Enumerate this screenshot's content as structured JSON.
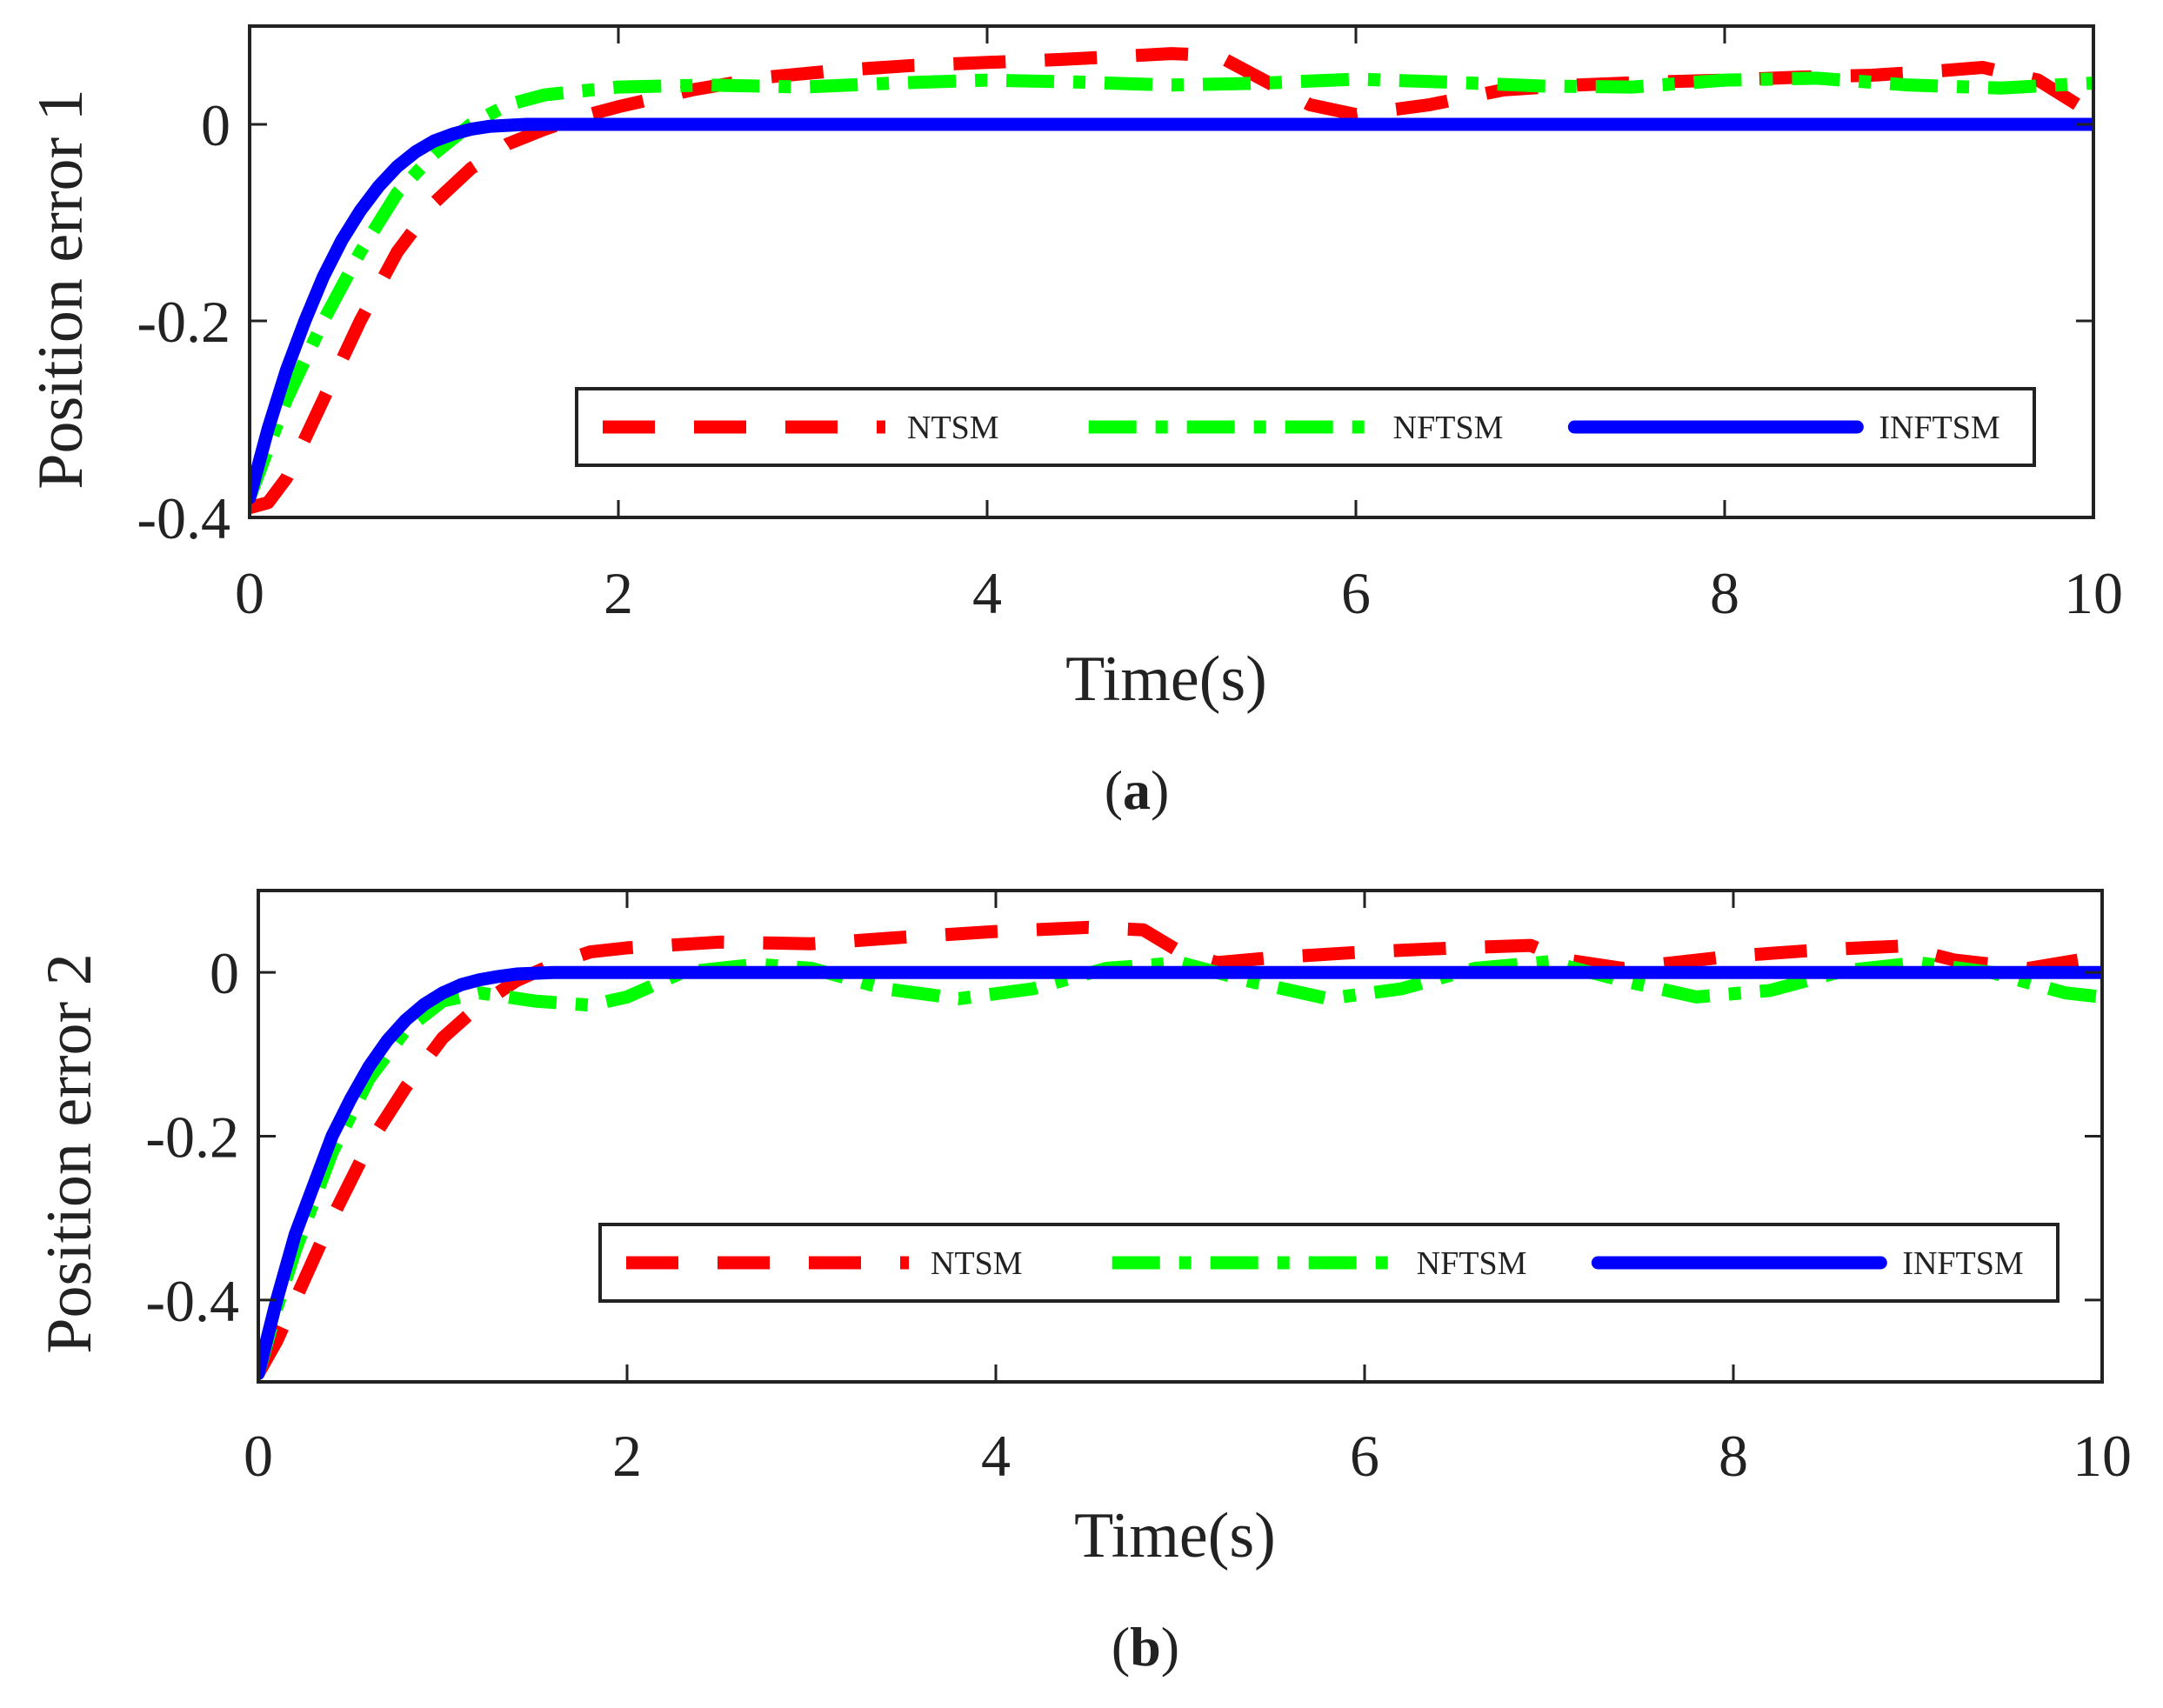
{
  "chart_data": [
    {
      "type": "line",
      "caption_letter": "a",
      "xlabel": "Time(s)",
      "ylabel": "Position error 1",
      "xlim": [
        0,
        10
      ],
      "ylim": [
        -0.4,
        0.1
      ],
      "xticks": [
        0,
        2,
        4,
        6,
        8,
        10
      ],
      "xtick_labels": [
        "0",
        "2",
        "4",
        "6",
        "8",
        "10"
      ],
      "yticks": [
        -0.4,
        -0.2,
        0
      ],
      "ytick_labels": [
        "-0.4",
        "-0.2",
        "0"
      ],
      "legend_position": "lower-right",
      "series": [
        {
          "name": "NTSM",
          "color": "#ff0000",
          "style": "dashed",
          "x": [
            0,
            0.1,
            0.2,
            0.4,
            0.6,
            0.8,
            1.0,
            1.2,
            1.4,
            1.6,
            1.8,
            2.0,
            2.4,
            2.8,
            3.2,
            3.6,
            4.0,
            4.4,
            4.8,
            5.0,
            5.25,
            5.5,
            5.75,
            6.0,
            6.4,
            6.8,
            7.2,
            7.6,
            8.0,
            8.4,
            8.8,
            9.2,
            9.4,
            9.7,
            10.0
          ],
          "y": [
            -0.39,
            -0.385,
            -0.36,
            -0.28,
            -0.2,
            -0.13,
            -0.08,
            -0.045,
            -0.02,
            -0.005,
            0.008,
            0.018,
            0.035,
            0.048,
            0.055,
            0.06,
            0.063,
            0.066,
            0.07,
            0.072,
            0.07,
            0.045,
            0.02,
            0.01,
            0.02,
            0.035,
            0.04,
            0.043,
            0.045,
            0.048,
            0.05,
            0.055,
            0.058,
            0.045,
            0.01
          ]
        },
        {
          "name": "NFTSM",
          "color": "#00ff00",
          "style": "dashdot",
          "x": [
            0,
            0.1,
            0.2,
            0.4,
            0.6,
            0.8,
            1.0,
            1.2,
            1.4,
            1.6,
            2.0,
            2.5,
            3.0,
            3.5,
            4.0,
            4.5,
            5.0,
            5.5,
            6.0,
            6.5,
            7.0,
            7.5,
            8.0,
            8.5,
            9.0,
            9.5,
            10.0
          ],
          "y": [
            -0.38,
            -0.33,
            -0.28,
            -0.2,
            -0.13,
            -0.07,
            -0.03,
            0.0,
            0.02,
            0.03,
            0.038,
            0.04,
            0.038,
            0.042,
            0.045,
            0.043,
            0.04,
            0.042,
            0.046,
            0.043,
            0.039,
            0.038,
            0.045,
            0.047,
            0.04,
            0.037,
            0.042
          ]
        },
        {
          "name": "INFTSM",
          "color": "#0000ff",
          "style": "solid",
          "x": [
            0,
            0.1,
            0.2,
            0.3,
            0.4,
            0.5,
            0.6,
            0.7,
            0.8,
            0.9,
            1.0,
            1.1,
            1.2,
            1.3,
            1.4,
            1.5,
            1.6,
            1.8,
            2.0,
            3.0,
            5.0,
            7.0,
            10.0
          ],
          "y": [
            -0.38,
            -0.31,
            -0.25,
            -0.2,
            -0.155,
            -0.118,
            -0.088,
            -0.063,
            -0.043,
            -0.028,
            -0.017,
            -0.01,
            -0.005,
            -0.002,
            -0.001,
            0.0,
            0.0,
            0.0,
            0.0,
            0.0,
            0.0,
            0.0,
            0.0
          ]
        }
      ]
    },
    {
      "type": "line",
      "caption_letter": "b",
      "xlabel": "Time(s)",
      "ylabel": "Position error 2",
      "xlim": [
        0,
        10
      ],
      "ylim": [
        -0.5,
        0.1
      ],
      "xticks": [
        0,
        2,
        4,
        6,
        8,
        10
      ],
      "xtick_labels": [
        "0",
        "2",
        "4",
        "6",
        "8",
        "10"
      ],
      "yticks": [
        -0.4,
        -0.2,
        0
      ],
      "ytick_labels": [
        "-0.4",
        "-0.2",
        "0"
      ],
      "legend_position": "lower-right",
      "series": [
        {
          "name": "NTSM",
          "color": "#ff0000",
          "style": "dashed",
          "x": [
            0,
            0.1,
            0.2,
            0.4,
            0.6,
            0.8,
            1.0,
            1.2,
            1.4,
            1.6,
            1.8,
            2.0,
            2.5,
            3.0,
            3.5,
            4.0,
            4.5,
            4.8,
            5.0,
            5.2,
            5.5,
            6.0,
            6.5,
            6.9,
            7.1,
            7.4,
            8.0,
            8.5,
            8.9,
            9.2,
            9.6,
            10.0
          ],
          "y": [
            -0.49,
            -0.45,
            -0.4,
            -0.3,
            -0.21,
            -0.14,
            -0.08,
            -0.04,
            -0.01,
            0.01,
            0.025,
            0.03,
            0.037,
            0.035,
            0.043,
            0.05,
            0.055,
            0.052,
            0.025,
            0.012,
            0.018,
            0.025,
            0.03,
            0.033,
            0.015,
            0.005,
            0.02,
            0.028,
            0.032,
            0.015,
            0.005,
            0.02
          ]
        },
        {
          "name": "NFTSM",
          "color": "#00ff00",
          "style": "dashdot",
          "x": [
            0,
            0.1,
            0.2,
            0.4,
            0.6,
            0.8,
            1.0,
            1.2,
            1.5,
            1.8,
            2.0,
            2.3,
            2.7,
            3.0,
            3.4,
            3.8,
            4.2,
            4.6,
            5.0,
            5.4,
            5.8,
            6.2,
            6.6,
            7.0,
            7.4,
            7.8,
            8.2,
            8.6,
            9.0,
            9.4,
            9.8,
            10.0
          ],
          "y": [
            -0.49,
            -0.41,
            -0.34,
            -0.22,
            -0.13,
            -0.07,
            -0.035,
            -0.025,
            -0.035,
            -0.04,
            -0.03,
            0.0,
            0.01,
            0.005,
            -0.02,
            -0.032,
            -0.02,
            0.005,
            0.012,
            -0.012,
            -0.032,
            -0.02,
            0.005,
            0.013,
            -0.01,
            -0.03,
            -0.022,
            0.002,
            0.012,
            0.0,
            -0.025,
            -0.03
          ]
        },
        {
          "name": "INFTSM",
          "color": "#0000ff",
          "style": "solid",
          "x": [
            0,
            0.1,
            0.2,
            0.3,
            0.4,
            0.5,
            0.6,
            0.7,
            0.8,
            0.9,
            1.0,
            1.1,
            1.2,
            1.3,
            1.4,
            1.5,
            1.6,
            1.8,
            2.0,
            3.0,
            5.0,
            7.0,
            10.0
          ],
          "y": [
            -0.49,
            -0.4,
            -0.32,
            -0.26,
            -0.2,
            -0.155,
            -0.115,
            -0.083,
            -0.058,
            -0.039,
            -0.025,
            -0.015,
            -0.009,
            -0.005,
            -0.002,
            -0.001,
            0.0,
            0.0,
            0.0,
            0.0,
            0.0,
            0.0,
            0.0
          ]
        }
      ]
    }
  ]
}
